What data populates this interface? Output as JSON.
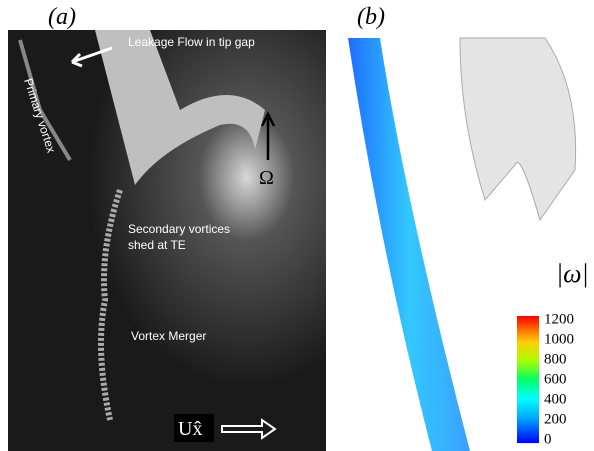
{
  "panels": {
    "a": {
      "label": "(a)",
      "annotations": [
        "Leakage Flow in tip gap",
        "Primary vortex",
        "Ω",
        "Secondary vortices",
        "shed at TE",
        "Vortex Merger",
        "Ux̂"
      ]
    },
    "b": {
      "label": "(b)",
      "colorbar": {
        "title": "|ω|",
        "ticks": [
          0,
          200,
          400,
          600,
          800,
          1000,
          1200
        ]
      }
    }
  }
}
